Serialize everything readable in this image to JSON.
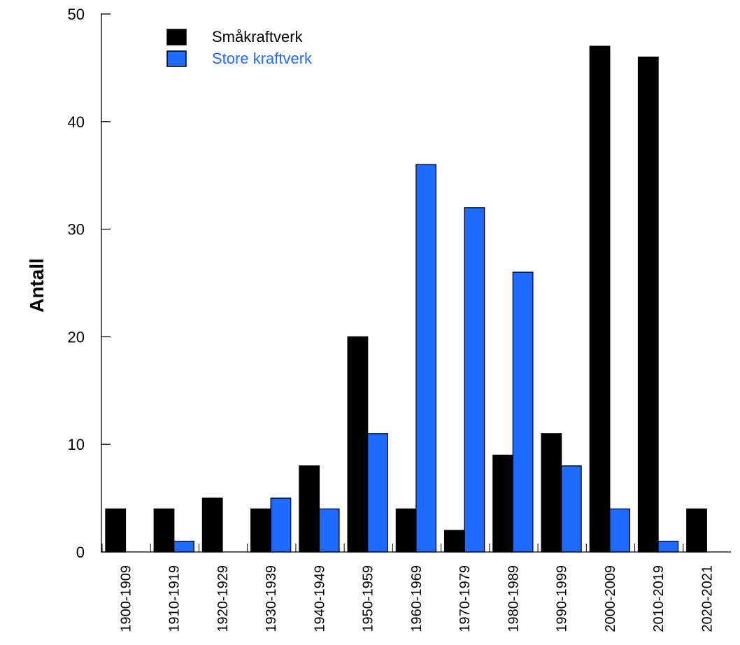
{
  "chart_data": {
    "type": "bar",
    "title": "",
    "xlabel": "",
    "ylabel": "Antall",
    "ylim": [
      0,
      50
    ],
    "yticks": [
      0,
      10,
      20,
      30,
      40,
      50
    ],
    "grid": false,
    "legend_position": "top-left",
    "categories": [
      "1900-1909",
      "1910-1919",
      "1920-1929",
      "1930-1939",
      "1940-1949",
      "1950-1959",
      "1960-1969",
      "1970-1979",
      "1980-1989",
      "1990-1999",
      "2000-2009",
      "2010-2019",
      "2020-2021"
    ],
    "series": [
      {
        "name": "Småkraftverk",
        "color": "#000000",
        "legend_text_color": "#000000",
        "values": [
          4,
          4,
          5,
          4,
          8,
          20,
          4,
          2,
          9,
          11,
          47,
          46,
          4
        ]
      },
      {
        "name": "Store kraftverk",
        "color": "#1f6bff",
        "legend_text_color": "#1f6bff",
        "values": [
          0,
          1,
          0,
          5,
          4,
          11,
          36,
          32,
          26,
          8,
          4,
          1,
          0
        ]
      }
    ]
  }
}
